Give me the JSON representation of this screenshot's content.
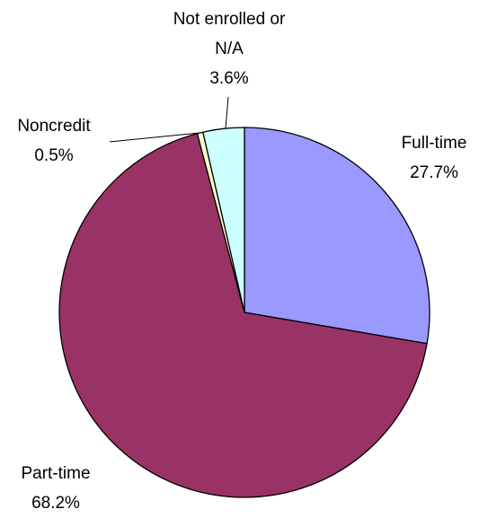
{
  "chart_data": {
    "type": "pie",
    "categories": [
      "Full-time",
      "Part-time",
      "Noncredit",
      "Not enrolled or N/A"
    ],
    "values": [
      27.7,
      68.2,
      0.5,
      3.6
    ],
    "value_labels": [
      "27.7%",
      "68.2%",
      "0.5%",
      "3.6%"
    ],
    "colors": [
      "#9999ff",
      "#993366",
      "#ffffcc",
      "#ccffff"
    ]
  }
}
